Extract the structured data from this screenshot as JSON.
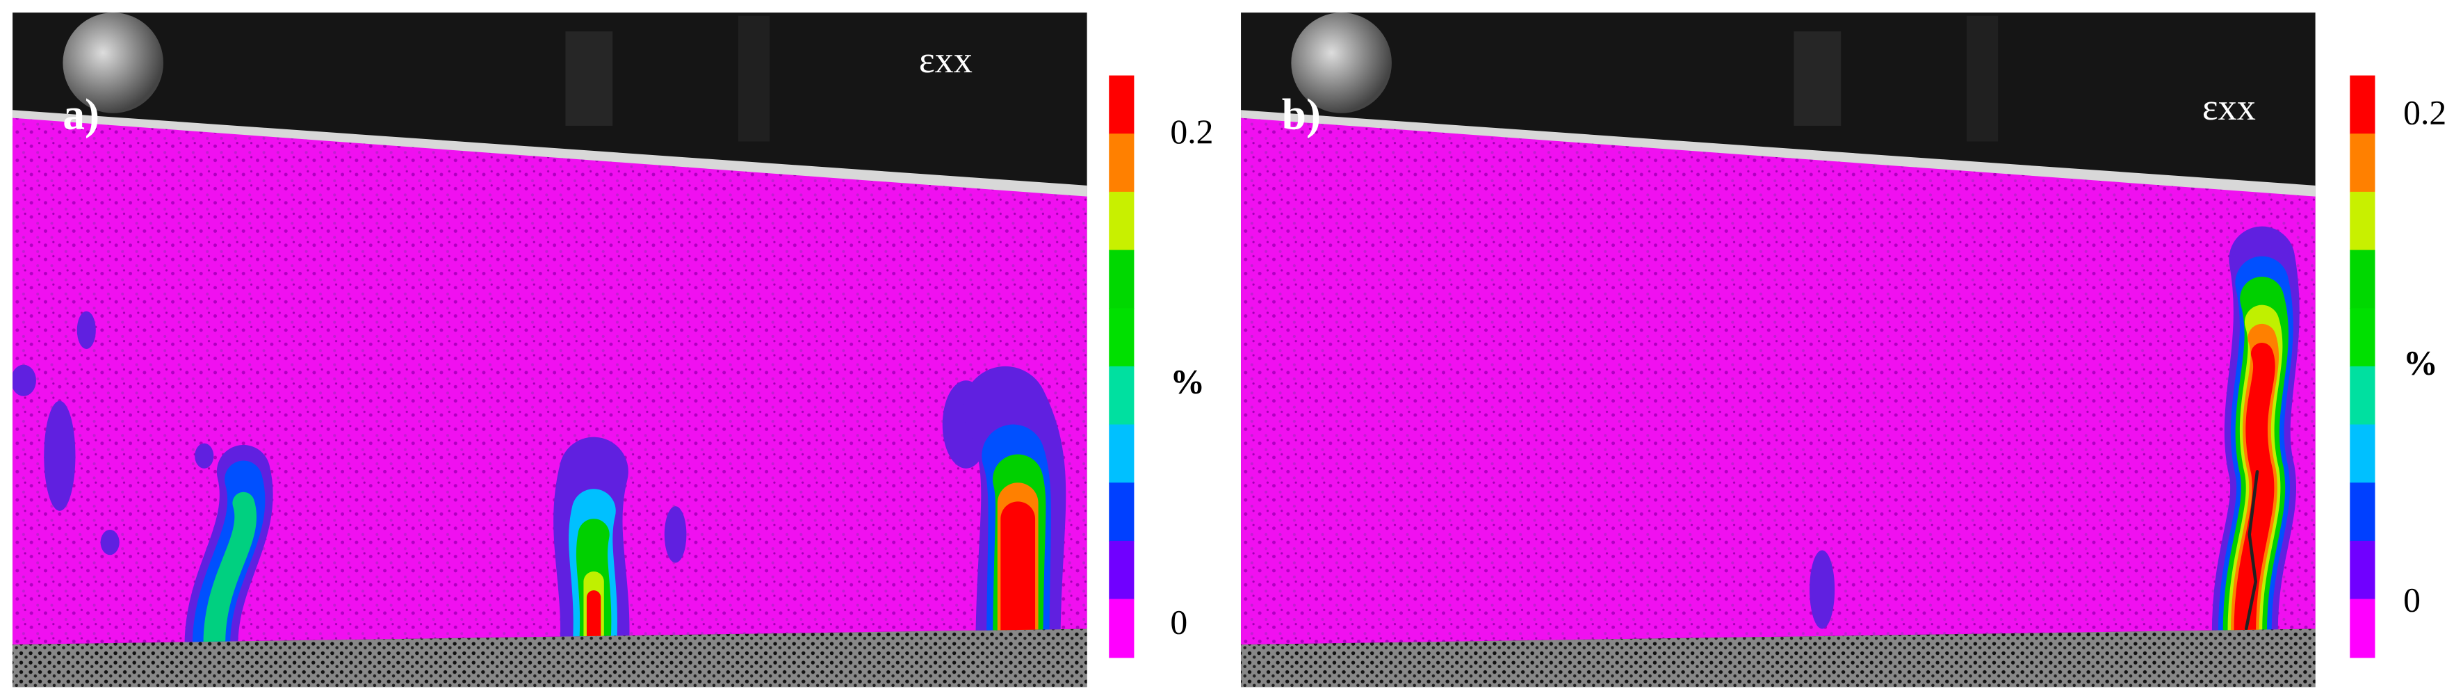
{
  "panels": [
    {
      "label": "a)",
      "symbol": "εxx",
      "colorbar": {
        "top": "0.2",
        "unit": "%",
        "bottom": "0"
      }
    },
    {
      "label": "b)",
      "symbol": "εxx",
      "colorbar": {
        "top": "0.2",
        "unit": "%",
        "bottom": "0"
      }
    }
  ]
}
